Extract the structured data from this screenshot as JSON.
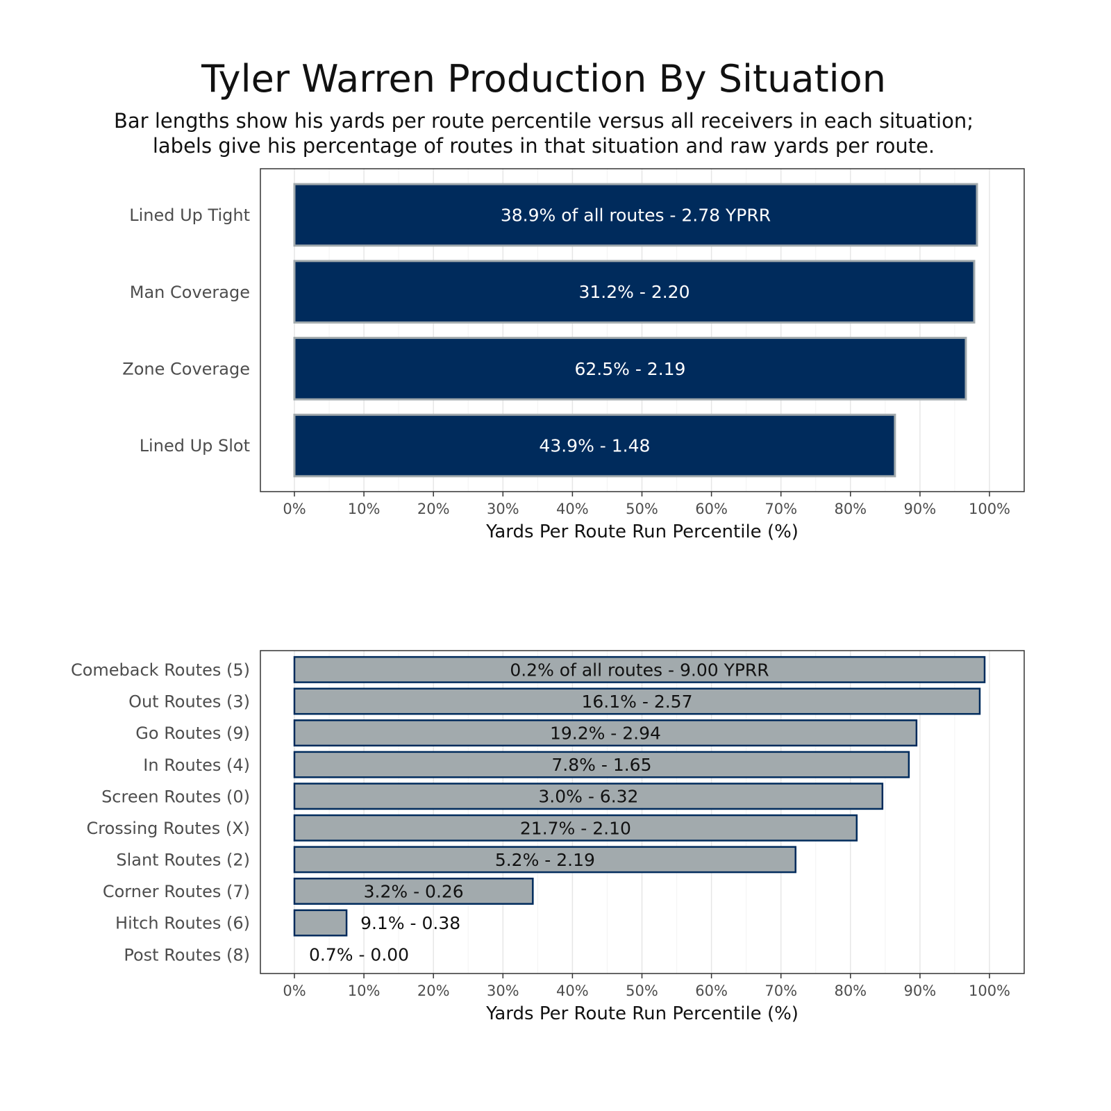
{
  "title": "Tyler Warren Production By Situation",
  "subtitle_lines": [
    "Bar lengths show his yards per route percentile versus all receivers in each situation;",
    "labels give his percentage of routes in that situation and raw yards per route."
  ],
  "colors": {
    "top_fill": "#002B5C",
    "top_border": "#A2AAAD",
    "bottom_fill": "#A2AAAD",
    "bottom_border": "#002B5C",
    "top_label": "#FFFFFF",
    "bottom_label": "#111111"
  },
  "chart_data": [
    {
      "type": "bar",
      "orientation": "horizontal",
      "categories": [
        "Lined Up Tight",
        "Man Coverage",
        "Zone Coverage",
        "Lined Up Slot"
      ],
      "values": [
        98.2,
        97.8,
        96.6,
        86.4
      ],
      "labels": [
        "38.9% of all routes - 2.78 YPRR",
        "31.2% - 2.20",
        "62.5% - 2.19",
        "43.9% - 1.48"
      ],
      "xlabel": "Yards Per Route Run Percentile (%)",
      "xlim": [
        0,
        100
      ],
      "xticks": [
        "0%",
        "10%",
        "20%",
        "30%",
        "40%",
        "50%",
        "60%",
        "70%",
        "80%",
        "90%",
        "100%"
      ],
      "grid": true
    },
    {
      "type": "bar",
      "orientation": "horizontal",
      "categories": [
        "Comeback Routes (5)",
        "Out Routes (3)",
        "Go Routes (9)",
        "In Routes (4)",
        "Screen Routes (0)",
        "Crossing Routes (X)",
        "Slant Routes (2)",
        "Corner Routes (7)",
        "Hitch Routes (6)",
        "Post Routes (8)"
      ],
      "values": [
        99.3,
        98.6,
        89.5,
        88.4,
        84.6,
        80.9,
        72.1,
        34.3,
        7.5,
        0
      ],
      "labels": [
        "0.2% of all routes - 9.00 YPRR",
        "16.1% - 2.57",
        "19.2% - 2.94",
        "7.8% - 1.65",
        "3.0% - 6.32",
        "21.7% - 2.10",
        "5.2% - 2.19",
        "3.2% - 0.26",
        "9.1% - 0.38",
        "0.7% - 0.00"
      ],
      "xlabel": "Yards Per Route Run Percentile (%)",
      "xlim": [
        0,
        100
      ],
      "xticks": [
        "0%",
        "10%",
        "20%",
        "30%",
        "40%",
        "50%",
        "60%",
        "70%",
        "80%",
        "90%",
        "100%"
      ],
      "grid": true
    }
  ]
}
